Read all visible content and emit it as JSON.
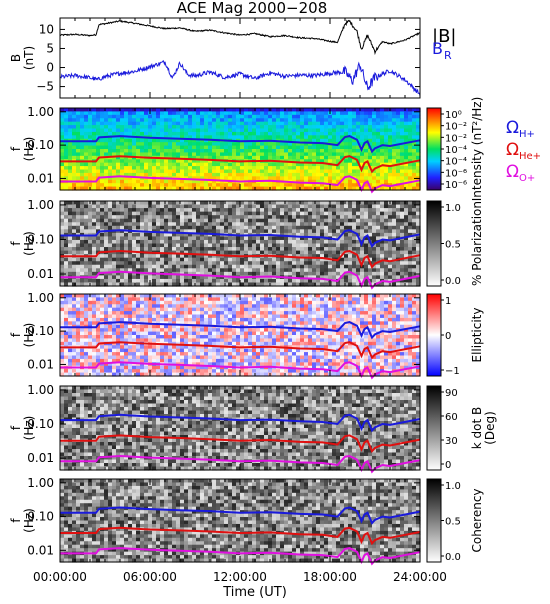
{
  "title": "ACE Mag 2000−208",
  "chart_data": {
    "type": "heatmap",
    "xlabel": "Time (UT)",
    "x_ticks": [
      "00:00:00",
      "06:00:00",
      "12:00:00",
      "18:00:00",
      "24:00:00"
    ],
    "xlim": [
      0,
      24
    ],
    "panels": [
      {
        "id": "field",
        "type": "line",
        "ylabel_main": "B",
        "ylabel_unit": "(nT)",
        "ylim": [
          -8,
          13
        ],
        "y_ticks": [
          "10",
          "5",
          "0",
          "−5"
        ],
        "legend": [
          {
            "label": "|B|",
            "sub": "",
            "color": "#000000"
          },
          {
            "label": "B",
            "sub": "R",
            "color": "#1a1adc"
          }
        ],
        "series": [
          {
            "name": "|B|",
            "color": "#000000",
            "x": [
              0,
              1,
              2,
              2.4,
              2.6,
              3,
              4,
              5,
              6,
              7,
              8,
              9,
              10,
              11,
              12,
              13,
              14,
              15,
              16,
              17,
              18,
              18.5,
              19,
              19.3,
              19.8,
              20.1,
              20.5,
              21,
              21.5,
              22,
              23,
              24
            ],
            "y": [
              8.5,
              8.7,
              8.4,
              8.6,
              11.3,
              11.5,
              12.2,
              11.6,
              10.9,
              10.2,
              10.4,
              9.5,
              9.8,
              9.1,
              8.5,
              8.9,
              8.1,
              8.4,
              7.8,
              7.6,
              6.9,
              6.6,
              11.5,
              12.2,
              9.5,
              4.8,
              8.5,
              4.2,
              6.8,
              6.2,
              7.2,
              9.1
            ]
          },
          {
            "name": "B_R",
            "color": "#1a1adc",
            "x": [
              0,
              1,
              2,
              2.5,
              3,
              4,
              5,
              6,
              7,
              7.5,
              8,
              8.5,
              9,
              10,
              11,
              12,
              13,
              14,
              15,
              16,
              17,
              18,
              19,
              19.5,
              20,
              20.5,
              21,
              22,
              23,
              24
            ],
            "y": [
              -2.5,
              -2.1,
              -2.7,
              -3.2,
              -2.4,
              -1.5,
              -1.0,
              0.2,
              1.5,
              -2.8,
              1.2,
              -1.8,
              -2.2,
              -1.2,
              -2.6,
              -1.7,
              -2.9,
              -1.4,
              -2.3,
              -2.0,
              -2.1,
              -1.5,
              -1.1,
              -3.5,
              0.8,
              -5.5,
              -2.6,
              -0.8,
              -3.2,
              -7.0
            ]
          }
        ]
      },
      {
        "id": "intensity",
        "type": "heatmap",
        "ylabel_main": "f",
        "ylabel_unit": "(Hz)",
        "colormap": "rainbow",
        "colorbar_label": "Intensity (nT²/Hz)",
        "colorbar_ticks": [
          "10⁰",
          "10⁻²",
          "10⁻²",
          "10⁻⁴",
          "10⁻⁴",
          "10⁻⁶",
          "10⁻⁶"
        ],
        "legend": [
          {
            "label": "Ω",
            "sub": "H+",
            "color": "#1a1adc"
          },
          {
            "label": "Ω",
            "sub": "He+",
            "color": "#e01010"
          },
          {
            "label": "Ω",
            "sub": "O+",
            "color": "#e010e0"
          }
        ]
      },
      {
        "id": "polarization",
        "type": "heatmap",
        "ylabel_main": "f",
        "ylabel_unit": "(Hz)",
        "colormap": "gray",
        "colorbar_label": "% Polarization",
        "colorbar_ticks": [
          "1.0",
          "0.5",
          "0.0"
        ]
      },
      {
        "id": "ellipticity",
        "type": "heatmap",
        "ylabel_main": "f",
        "ylabel_unit": "(Hz)",
        "colormap": "bwr",
        "colorbar_label": "Ellipticity",
        "colorbar_ticks": [
          "1",
          "0",
          "−1"
        ]
      },
      {
        "id": "kdotb",
        "type": "heatmap",
        "ylabel_main": "f",
        "ylabel_unit": "(Hz)",
        "colormap": "gray",
        "colorbar_label": "k dot B",
        "colorbar_label2": "(Deg)",
        "colorbar_ticks": [
          "90",
          "60",
          "30",
          "0"
        ]
      },
      {
        "id": "coherency",
        "type": "heatmap",
        "ylabel_main": "f",
        "ylabel_unit": "(Hz)",
        "colormap": "gray",
        "colorbar_label": "Coherency",
        "colorbar_ticks": [
          "1.0",
          "0.5",
          "0.0"
        ]
      }
    ],
    "freq_axis": {
      "scale": "log",
      "ylim": [
        0.0045,
        1.3
      ],
      "ticks": [
        {
          "value": 1.0,
          "label": "1.00"
        },
        {
          "value": 0.1,
          "label": "0.10"
        },
        {
          "value": 0.01,
          "label": "0.01"
        }
      ]
    },
    "gyrofrequency_series": [
      {
        "name": "ΩH+",
        "color": "#1a1adc",
        "x": [
          0,
          2.4,
          2.6,
          4,
          6,
          8,
          10,
          12,
          14,
          16,
          17.5,
          18.5,
          19,
          19.3,
          19.6,
          19.8,
          20.1,
          20.3,
          20.5,
          20.8,
          21,
          21.5,
          22,
          24
        ],
        "y": [
          0.13,
          0.13,
          0.17,
          0.186,
          0.166,
          0.155,
          0.145,
          0.13,
          0.135,
          0.12,
          0.115,
          0.1,
          0.175,
          0.186,
          0.16,
          0.145,
          0.073,
          0.115,
          0.13,
          0.064,
          0.08,
          0.1,
          0.094,
          0.14
        ]
      },
      {
        "name": "ΩHe+",
        "color": "#e01010",
        "x": [
          0,
          2.4,
          2.6,
          4,
          6,
          8,
          10,
          12,
          14,
          16,
          17.5,
          18.5,
          19,
          19.3,
          19.6,
          19.8,
          20.1,
          20.3,
          20.5,
          20.8,
          21,
          21.5,
          22,
          24
        ],
        "y": [
          0.0325,
          0.0325,
          0.0425,
          0.0465,
          0.0415,
          0.039,
          0.036,
          0.0325,
          0.034,
          0.03,
          0.029,
          0.025,
          0.044,
          0.0465,
          0.04,
          0.036,
          0.018,
          0.029,
          0.0325,
          0.016,
          0.02,
          0.025,
          0.0235,
          0.035
        ]
      },
      {
        "name": "ΩO+",
        "color": "#e010e0",
        "x": [
          0,
          2.4,
          2.6,
          4,
          6,
          8,
          10,
          12,
          14,
          16,
          17.5,
          18.5,
          19,
          19.3,
          19.6,
          19.8,
          20.1,
          20.3,
          20.5,
          20.8,
          21,
          21.5,
          22,
          24
        ],
        "y": [
          0.0081,
          0.0081,
          0.0106,
          0.0116,
          0.0104,
          0.0097,
          0.009,
          0.0081,
          0.0085,
          0.0075,
          0.0072,
          0.0063,
          0.011,
          0.0116,
          0.01,
          0.009,
          0.0046,
          0.0072,
          0.0081,
          0.004,
          0.005,
          0.0063,
          0.0059,
          0.0088
        ]
      }
    ]
  }
}
